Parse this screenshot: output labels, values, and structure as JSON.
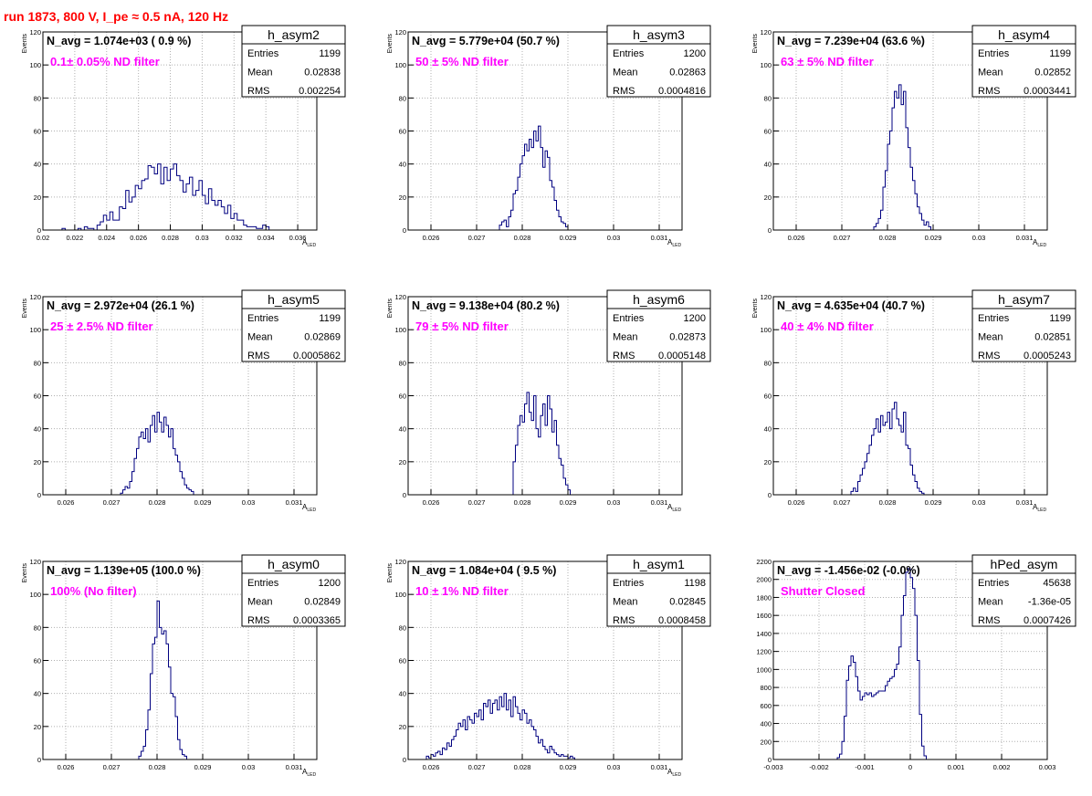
{
  "page_title": "run 1873,   800 V, I_pe ≈ 0.5 nA, 120 Hz",
  "colors": {
    "title": "#ff0000",
    "annotation": "#ff00ff",
    "histogram": "#000080",
    "grid": "#b0b0b0",
    "frame": "#000000"
  },
  "stats_labels": {
    "entries": "Entries",
    "mean": "Mean",
    "rms": "RMS"
  },
  "chart_data": [
    {
      "type": "histogram",
      "name": "h_asym2",
      "header": "N_avg = 1.074e+03 ( 0.9 %)",
      "annotation": "0.1± 0.05% ND filter",
      "stats": {
        "entries": "1199",
        "mean": "0.02838",
        "rms": "0.002254"
      },
      "ylabel": "Events",
      "xlabel": "A_LED",
      "xlim": [
        0.02,
        0.0372
      ],
      "ylim": [
        0,
        120
      ],
      "xticks": [
        0.02,
        0.022,
        0.024,
        0.026,
        0.028,
        0.03,
        0.032,
        0.034,
        0.036
      ],
      "xtick_labels": [
        "0.02",
        "0.022",
        "0.024",
        "0.026",
        "0.028",
        "0.03",
        "0.032",
        "0.034",
        "0.036"
      ],
      "yticks": [
        0,
        20,
        40,
        60,
        80,
        100,
        120
      ],
      "ytick_labels": [
        "0",
        "20",
        "40",
        "60",
        "80",
        "100",
        "120"
      ],
      "grid": true,
      "bin_start": 0.0212,
      "bin_width": 0.0002,
      "values": [
        1,
        0,
        0,
        0,
        0,
        1,
        0,
        2,
        1,
        1,
        0,
        3,
        5,
        9,
        6,
        11,
        6,
        6,
        14,
        13,
        24,
        17,
        20,
        27,
        25,
        30,
        31,
        39,
        38,
        34,
        40,
        28,
        38,
        30,
        37,
        40,
        33,
        30,
        23,
        28,
        32,
        21,
        24,
        30,
        21,
        16,
        25,
        18,
        15,
        18,
        14,
        10,
        15,
        7,
        10,
        6,
        6,
        3,
        2,
        2,
        2,
        1,
        1,
        3,
        2
      ]
    },
    {
      "type": "histogram",
      "name": "h_asym3",
      "header": "N_avg = 5.779e+04 (50.7 %)",
      "annotation": "50 ± 5% ND filter",
      "stats": {
        "entries": "1200",
        "mean": "0.02863",
        "rms": "0.0004816"
      },
      "ylabel": "Events",
      "xlabel": "A_LED",
      "xlim": [
        0.0255,
        0.0315
      ],
      "ylim": [
        0,
        120
      ],
      "xticks": [
        0.026,
        0.027,
        0.028,
        0.029,
        0.03,
        0.031
      ],
      "xtick_labels": [
        "0.026",
        "0.027",
        "0.028",
        "0.029",
        "0.03",
        "0.031"
      ],
      "yticks": [
        0,
        20,
        40,
        60,
        80,
        100,
        120
      ],
      "ytick_labels": [
        "0",
        "20",
        "40",
        "60",
        "80",
        "100",
        "120"
      ],
      "grid": true,
      "bin_start": 0.0275,
      "bin_width": 5e-05,
      "values": [
        3,
        5,
        6,
        2,
        8,
        12,
        22,
        24,
        32,
        40,
        45,
        52,
        48,
        55,
        50,
        60,
        54,
        63,
        50,
        38,
        48,
        44,
        30,
        26,
        18,
        12,
        8,
        5,
        4,
        2
      ]
    },
    {
      "type": "histogram",
      "name": "h_asym4",
      "header": "N_avg = 7.239e+04 (63.6 %)",
      "annotation": "63 ± 5% ND filter",
      "stats": {
        "entries": "1199",
        "mean": "0.02852",
        "rms": "0.0003441"
      },
      "ylabel": "Events",
      "xlabel": "A_LED",
      "xlim": [
        0.0255,
        0.0315
      ],
      "ylim": [
        0,
        120
      ],
      "xticks": [
        0.026,
        0.027,
        0.028,
        0.029,
        0.03,
        0.031
      ],
      "xtick_labels": [
        "0.026",
        "0.027",
        "0.028",
        "0.029",
        "0.03",
        "0.031"
      ],
      "yticks": [
        0,
        20,
        40,
        60,
        80,
        100,
        120
      ],
      "ytick_labels": [
        "0",
        "20",
        "40",
        "60",
        "80",
        "100",
        "120"
      ],
      "grid": true,
      "bin_start": 0.0277,
      "bin_width": 5e-05,
      "values": [
        2,
        4,
        7,
        12,
        26,
        36,
        52,
        60,
        74,
        84,
        80,
        88,
        76,
        84,
        62,
        50,
        38,
        30,
        22,
        14,
        10,
        6,
        3,
        5,
        2
      ]
    },
    {
      "type": "histogram",
      "name": "h_asym5",
      "header": "N_avg = 2.972e+04 (26.1 %)",
      "annotation": "25 ± 2.5% ND filter",
      "stats": {
        "entries": "1199",
        "mean": "0.02869",
        "rms": "0.0005862"
      },
      "ylabel": "Events",
      "xlabel": "A_LED",
      "xlim": [
        0.0255,
        0.0315
      ],
      "ylim": [
        0,
        120
      ],
      "xticks": [
        0.026,
        0.027,
        0.028,
        0.029,
        0.03,
        0.031
      ],
      "xtick_labels": [
        "0.026",
        "0.027",
        "0.028",
        "0.029",
        "0.03",
        "0.031"
      ],
      "yticks": [
        0,
        20,
        40,
        60,
        80,
        100,
        120
      ],
      "ytick_labels": [
        "0",
        "20",
        "40",
        "60",
        "80",
        "100",
        "120"
      ],
      "grid": true,
      "bin_start": 0.0272,
      "bin_width": 5e-05,
      "values": [
        1,
        3,
        5,
        4,
        8,
        14,
        22,
        28,
        35,
        38,
        34,
        40,
        32,
        42,
        48,
        38,
        50,
        44,
        38,
        47,
        42,
        35,
        40,
        28,
        24,
        20,
        14,
        10,
        6,
        4,
        3,
        2
      ]
    },
    {
      "type": "histogram",
      "name": "h_asym6",
      "header": "N_avg = 9.138e+04 (80.2 %)",
      "annotation": "79 ± 5% ND filter",
      "stats": {
        "entries": "1200",
        "mean": "0.02873",
        "rms": "0.0005148"
      },
      "ylabel": "Events",
      "xlabel": "A_LED",
      "xlim": [
        0.0255,
        0.0315
      ],
      "ylim": [
        0,
        120
      ],
      "xticks": [
        0.026,
        0.027,
        0.028,
        0.029,
        0.03,
        0.031
      ],
      "xtick_labels": [
        "0.026",
        "0.027",
        "0.028",
        "0.029",
        "0.03",
        "0.031"
      ],
      "yticks": [
        0,
        20,
        40,
        60,
        80,
        100,
        120
      ],
      "ytick_labels": [
        "0",
        "20",
        "40",
        "60",
        "80",
        "100",
        "120"
      ],
      "grid": true,
      "bin_start": 0.0278,
      "bin_width": 5e-05,
      "values": [
        20,
        30,
        42,
        48,
        44,
        55,
        62,
        50,
        45,
        60,
        40,
        35,
        48,
        55,
        42,
        60,
        52,
        38,
        45,
        30,
        22,
        18,
        10,
        6,
        3
      ]
    },
    {
      "type": "histogram",
      "name": "h_asym7",
      "header": "N_avg = 4.635e+04 (40.7 %)",
      "annotation": "40 ± 4% ND filter",
      "stats": {
        "entries": "1199",
        "mean": "0.02851",
        "rms": "0.0005243"
      },
      "ylabel": "Events",
      "xlabel": "A_LED",
      "xlim": [
        0.0255,
        0.0315
      ],
      "ylim": [
        0,
        120
      ],
      "xticks": [
        0.026,
        0.027,
        0.028,
        0.029,
        0.03,
        0.031
      ],
      "xtick_labels": [
        "0.026",
        "0.027",
        "0.028",
        "0.029",
        "0.03",
        "0.031"
      ],
      "yticks": [
        0,
        20,
        40,
        60,
        80,
        100,
        120
      ],
      "ytick_labels": [
        "0",
        "20",
        "40",
        "60",
        "80",
        "100",
        "120"
      ],
      "grid": true,
      "bin_start": 0.0272,
      "bin_width": 5e-05,
      "values": [
        2,
        4,
        2,
        8,
        12,
        16,
        20,
        25,
        30,
        36,
        40,
        46,
        38,
        48,
        42,
        44,
        50,
        40,
        52,
        56,
        46,
        42,
        38,
        50,
        30,
        28,
        18,
        12,
        8,
        4,
        2,
        1
      ]
    },
    {
      "type": "histogram",
      "name": "h_asym0",
      "header": "N_avg = 1.139e+05 (100.0 %)",
      "annotation": "100% (No filter)",
      "stats": {
        "entries": "1200",
        "mean": "0.02849",
        "rms": "0.0003365"
      },
      "ylabel": "Events",
      "xlabel": "A_LED",
      "xlim": [
        0.0255,
        0.0315
      ],
      "ylim": [
        0,
        120
      ],
      "xticks": [
        0.026,
        0.027,
        0.028,
        0.029,
        0.03,
        0.031
      ],
      "xtick_labels": [
        "0.026",
        "0.027",
        "0.028",
        "0.029",
        "0.03",
        "0.031"
      ],
      "yticks": [
        0,
        20,
        40,
        60,
        80,
        100,
        120
      ],
      "ytick_labels": [
        "0",
        "20",
        "40",
        "60",
        "80",
        "100",
        "120"
      ],
      "grid": true,
      "bin_start": 0.0276,
      "bin_width": 5e-05,
      "values": [
        2,
        5,
        8,
        18,
        30,
        52,
        70,
        74,
        96,
        80,
        76,
        78,
        70,
        56,
        40,
        38,
        26,
        12,
        6,
        3,
        2
      ]
    },
    {
      "type": "histogram",
      "name": "h_asym1",
      "header": "N_avg = 1.084e+04 ( 9.5 %)",
      "annotation": "10 ± 1% ND filter",
      "stats": {
        "entries": "1198",
        "mean": "0.02845",
        "rms": "0.0008458"
      },
      "ylabel": "Events",
      "xlabel": "A_LED",
      "xlim": [
        0.0255,
        0.0315
      ],
      "ylim": [
        0,
        120
      ],
      "xticks": [
        0.026,
        0.027,
        0.028,
        0.029,
        0.03,
        0.031
      ],
      "xtick_labels": [
        "0.026",
        "0.027",
        "0.028",
        "0.029",
        "0.03",
        "0.031"
      ],
      "yticks": [
        0,
        20,
        40,
        60,
        80,
        100,
        120
      ],
      "ytick_labels": [
        "0",
        "20",
        "40",
        "60",
        "80",
        "100",
        "120"
      ],
      "grid": true,
      "bin_start": 0.0259,
      "bin_width": 5e-05,
      "values": [
        2,
        1,
        3,
        2,
        4,
        5,
        3,
        7,
        6,
        10,
        8,
        12,
        14,
        18,
        22,
        20,
        24,
        18,
        26,
        24,
        22,
        28,
        26,
        30,
        24,
        34,
        32,
        36,
        28,
        34,
        36,
        30,
        38,
        32,
        40,
        30,
        36,
        26,
        38,
        32,
        28,
        24,
        30,
        28,
        22,
        24,
        20,
        18,
        14,
        10,
        12,
        8,
        6,
        4,
        8,
        6,
        4,
        3,
        2,
        3,
        2,
        2,
        1,
        2,
        1
      ]
    },
    {
      "type": "histogram",
      "name": "hPed_asym",
      "header": "N_avg = -1.456e-02 (-0.0%)",
      "annotation": "Shutter Closed",
      "stats": {
        "entries": "45638",
        "mean": "-1.36e-05",
        "rms": "0.0007426"
      },
      "ylabel": "",
      "xlabel": "",
      "xlim": [
        -0.003,
        0.003
      ],
      "ylim": [
        0,
        2200
      ],
      "xticks": [
        -0.003,
        -0.002,
        -0.001,
        0,
        0.001,
        0.002,
        0.003
      ],
      "xtick_labels": [
        "-0.003",
        "-0.002",
        "-0.001",
        "0",
        "0.001",
        "0.002",
        "0.003"
      ],
      "yticks": [
        0,
        200,
        400,
        600,
        800,
        1000,
        1200,
        1400,
        1600,
        1800,
        2000,
        2200
      ],
      "ytick_labels": [
        "0",
        "200",
        "400",
        "600",
        "800",
        "1000",
        "1200",
        "1400",
        "1600",
        "1800",
        "2000",
        "2200"
      ],
      "grid": true,
      "bin_start": -0.0016,
      "bin_width": 5e-05,
      "values": [
        20,
        60,
        200,
        480,
        880,
        1040,
        1150,
        1080,
        920,
        760,
        660,
        700,
        740,
        720,
        740,
        700,
        720,
        740,
        760,
        760,
        760,
        820,
        870,
        900,
        920,
        1000,
        1060,
        1250,
        1600,
        1820,
        2080,
        2120,
        2020,
        1900,
        1600,
        1100,
        500,
        150,
        40
      ]
    }
  ]
}
